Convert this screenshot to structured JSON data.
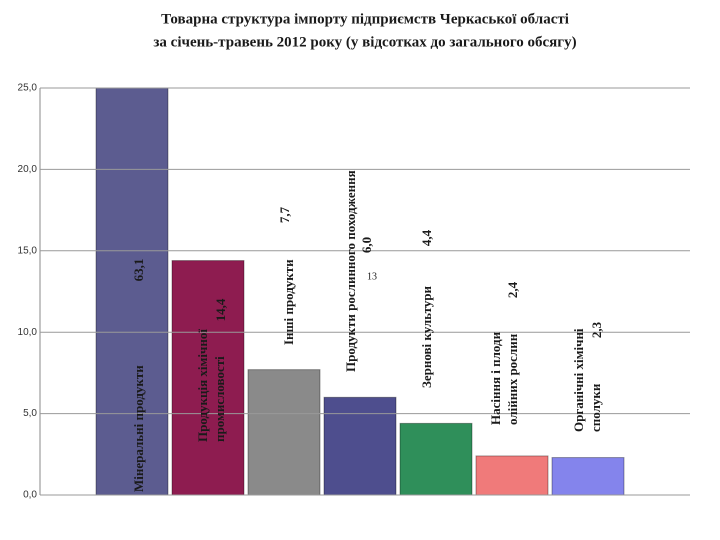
{
  "chart_data": {
    "type": "bar",
    "title": "Товарна структура імпорту підприємств Черкаської області",
    "subtitle": "за січень-травень 2012 року (у відсотках до загального обсягу)",
    "categories": [
      "Мінеральні продукти",
      "Продукція хімічної промисловості",
      "Інші продукти",
      "Продукти рослинного походження",
      "Зернові культури",
      "Насіння і плоди олійних рослин",
      "Органічні хімічні сполуки"
    ],
    "values": [
      63.1,
      14.4,
      7.7,
      6.0,
      4.4,
      2.4,
      2.3
    ],
    "value_labels": [
      "63,1",
      "14,4",
      "7,7",
      "6,0",
      "4,4",
      "2,4",
      "2,3"
    ],
    "colors": [
      "#5c5c90",
      "#8e1c50",
      "#8a8a8a",
      "#4e4e8e",
      "#2f8f5a",
      "#f07a7a",
      "#8484ec"
    ],
    "annotation": "13",
    "ylim": [
      0,
      25
    ],
    "yticks": [
      {
        "value": 0,
        "label": "0,0"
      },
      {
        "value": 5,
        "label": "5,0"
      },
      {
        "value": 10,
        "label": "10,0"
      },
      {
        "value": 15,
        "label": "15,0"
      },
      {
        "value": 20,
        "label": "20,0"
      },
      {
        "value": 25,
        "label": "25,0"
      }
    ],
    "grid": true
  }
}
